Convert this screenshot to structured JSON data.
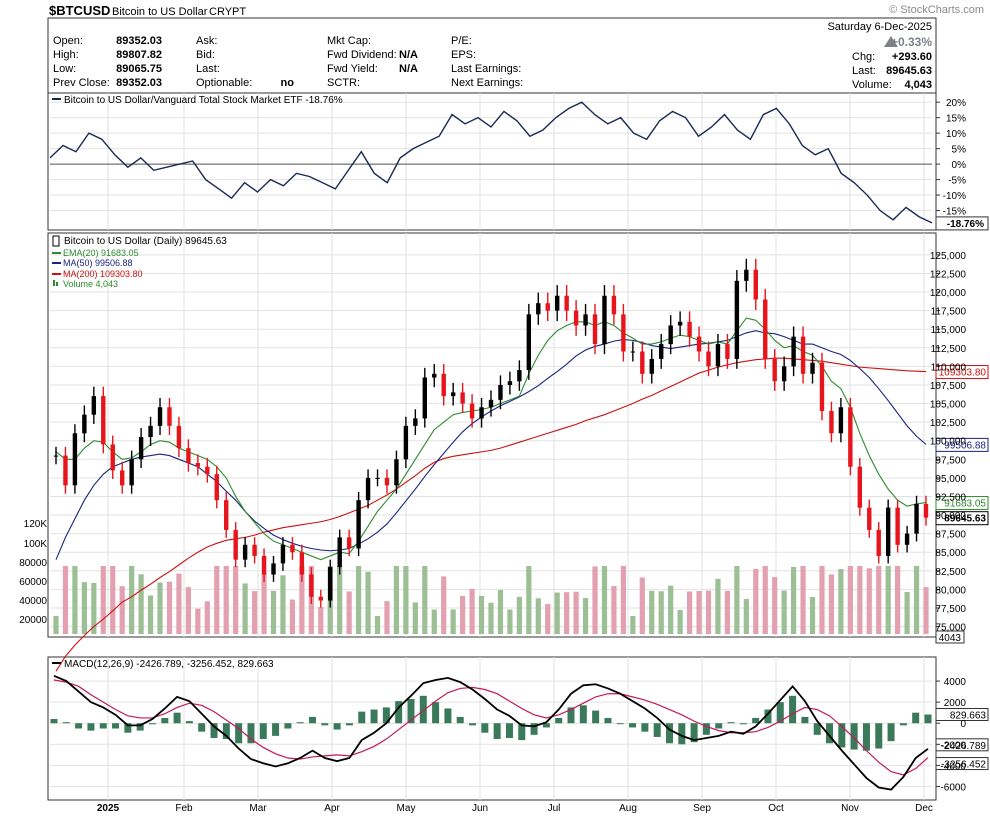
{
  "header": {
    "symbol": "$BTCUSD",
    "name": "Bitcoin to US Dollar",
    "exchange": "CRYPT",
    "watermark": "© StockCharts.com",
    "date": "Saturday  6-Dec-2025",
    "pct_change": "+0.33%",
    "chg_label": "Chg:",
    "chg_value": "+293.60",
    "last_label": "Last:",
    "last_value": "89645.63",
    "volume_label": "Volume:",
    "volume_value": "4,043",
    "quote_rows": [
      {
        "label": "Open:",
        "value": "89352.03"
      },
      {
        "label": "High:",
        "value": "89807.82"
      },
      {
        "label": "Low:",
        "value": "89065.75"
      },
      {
        "label": "Prev Close:",
        "value": "89352.03"
      }
    ],
    "bid_rows": [
      {
        "label": "Ask:",
        "value": ""
      },
      {
        "label": "Bid:",
        "value": ""
      },
      {
        "label": "Last:",
        "value": ""
      },
      {
        "label": "Optionable:",
        "value": "no"
      }
    ],
    "fund_rows": [
      {
        "label": "Mkt Cap:",
        "value": ""
      },
      {
        "label": "Fwd Dividend:",
        "value": "N/A"
      },
      {
        "label": "Fwd Yield:",
        "value": "N/A"
      },
      {
        "label": "SCTR:",
        "value": ""
      }
    ],
    "earn_rows": [
      {
        "label": "P/E:",
        "value": ""
      },
      {
        "label": "EPS:",
        "value": ""
      },
      {
        "label": "Last Earnings:",
        "value": ""
      },
      {
        "label": "Next Earnings:",
        "value": ""
      }
    ]
  },
  "colors": {
    "up": "#000000",
    "down": "#e8141c",
    "ema20": "#2e8b2e",
    "ma50": "#1a237e",
    "ma200": "#cc1111",
    "rel": "#1a2a55",
    "macd": "#000000",
    "signal": "#c2185b",
    "hist": "#3a7a5a",
    "vol_up": "#9cbf96",
    "vol_down": "#e2a0b0",
    "grid": "#e2e2e2",
    "border": "#333333"
  },
  "chart_data": [
    {
      "panel": "relative_strength",
      "type": "line",
      "legend": "Bitcoin to US Dollar/Vanguard Total Stock Market ETF -18.76%",
      "last_label": "-18.76%",
      "ylim": [
        -20,
        22
      ],
      "ticks": [
        "20%",
        "15%",
        "10%",
        "5%",
        "0%",
        "-5%",
        "-10%",
        "-15%"
      ],
      "tick_values": [
        20,
        15,
        10,
        5,
        0,
        -5,
        -10,
        -15
      ],
      "values": [
        2,
        6,
        4,
        10,
        8,
        3,
        -1,
        2,
        -2,
        -1,
        0,
        1,
        -5,
        -8,
        -11,
        -6,
        -9,
        -5,
        -7,
        -3,
        -4,
        -6,
        -8,
        -2,
        4,
        -3,
        -6,
        2,
        5,
        7,
        9,
        16,
        13,
        15,
        12,
        17,
        14,
        9,
        11,
        15,
        18,
        20,
        16,
        13,
        15,
        10,
        8,
        14,
        17,
        15,
        9,
        12,
        16,
        11,
        8,
        16,
        18,
        13,
        6,
        3,
        5,
        -3,
        -6,
        -10,
        -15,
        -18,
        -14,
        -17,
        -19
      ]
    },
    {
      "panel": "price",
      "type": "candlestick",
      "legend": "Bitcoin to US Dollar (Daily) 89645.63",
      "series": [
        {
          "name": "EMA(20) 91683.05",
          "label": "91683.05"
        },
        {
          "name": "MA(50) 99506.88",
          "label": "99506.88"
        },
        {
          "name": "MA(200) 109303.80",
          "label": "109303.80"
        },
        {
          "name": "Volume 4,043",
          "label": "4043"
        }
      ],
      "last_label": "89645.63",
      "ylim": [
        74000,
        127000
      ],
      "ticks": [
        "125,000",
        "122,500",
        "120,000",
        "117,500",
        "115,000",
        "112,500",
        "110,000",
        "107,500",
        "105,000",
        "102,500",
        "100,000",
        "97,500",
        "95,000",
        "92,500",
        "90,000",
        "87,500",
        "85,000",
        "82,500",
        "80,000",
        "77,500",
        "75,000"
      ],
      "tick_values": [
        125000,
        122500,
        120000,
        117500,
        115000,
        112500,
        110000,
        107500,
        105000,
        102500,
        100000,
        97500,
        95000,
        92500,
        90000,
        87500,
        85000,
        82500,
        80000,
        77500,
        75000
      ],
      "close": [
        98000,
        94000,
        101000,
        103500,
        106000,
        99500,
        96000,
        94000,
        97500,
        100500,
        102000,
        104500,
        102000,
        99000,
        97000,
        96500,
        95500,
        92000,
        88000,
        84000,
        86000,
        84500,
        82000,
        83500,
        86000,
        85000,
        82000,
        79000,
        78500,
        83000,
        87000,
        85500,
        92000,
        95000,
        95000,
        94000,
        97500,
        102000,
        103000,
        108500,
        109000,
        106000,
        106500,
        105000,
        103000,
        104500,
        105500,
        107500,
        108000,
        109500,
        117000,
        118500,
        117500,
        119500,
        117500,
        115500,
        117000,
        113000,
        119500,
        117000,
        112000,
        112000,
        109000,
        111000,
        113000,
        115500,
        116000,
        114000,
        112000,
        110000,
        113000,
        111000,
        121500,
        123000,
        119000,
        111000,
        108000,
        110000,
        114000,
        109000,
        110500,
        104000,
        101000,
        104500,
        96500,
        91000,
        88000,
        84500,
        91000,
        86000,
        87500,
        91500,
        89646
      ],
      "ema20": [
        98500,
        97500,
        97500,
        99000,
        100000,
        99800,
        98500,
        97500,
        97700,
        98500,
        99500,
        100000,
        99800,
        99000,
        98500,
        98000,
        97500,
        96500,
        95000,
        92500,
        90500,
        89000,
        87500,
        86500,
        86000,
        85500,
        85000,
        84500,
        84000,
        84500,
        85000,
        84800,
        86500,
        88500,
        90500,
        92000,
        93500,
        95500,
        97500,
        99500,
        101500,
        102500,
        103500,
        103800,
        104000,
        104200,
        104500,
        105000,
        105500,
        106000,
        109000,
        111500,
        113500,
        114800,
        115500,
        116000,
        116000,
        115500,
        116000,
        115500,
        114500,
        113800,
        113000,
        113000,
        113300,
        113800,
        114200,
        114000,
        113500,
        113000,
        113300,
        113000,
        114800,
        116500,
        116200,
        115000,
        113500,
        112500,
        112800,
        112000,
        111500,
        110000,
        108000,
        107000,
        104500,
        101000,
        98000,
        95500,
        93500,
        92000,
        91200,
        91500,
        91683
      ],
      "ma50": [
        84000,
        87000,
        89500,
        92000,
        94000,
        95500,
        96500,
        97000,
        97500,
        97800,
        98000,
        98200,
        98000,
        97500,
        97000,
        96500,
        95500,
        94500,
        93200,
        92000,
        90500,
        89200,
        88200,
        87300,
        86700,
        86200,
        85800,
        85500,
        85300,
        85200,
        85300,
        85500,
        86100,
        86800,
        87700,
        88800,
        90300,
        91900,
        93500,
        95200,
        96800,
        98300,
        99800,
        101200,
        102300,
        103200,
        104000,
        104700,
        105300,
        105900,
        106600,
        107400,
        108400,
        109300,
        110300,
        111400,
        112200,
        112700,
        113000,
        113400,
        113600,
        113500,
        113200,
        112800,
        112600,
        112400,
        112600,
        112800,
        113000,
        113100,
        113300,
        113500,
        114000,
        114500,
        114800,
        114500,
        114400,
        114000,
        113500,
        113000,
        113000,
        112500,
        112000,
        111600,
        110800,
        109700,
        108500,
        107000,
        105400,
        103700,
        102000,
        100600,
        99507
      ],
      "ma200": [
        69000,
        71000,
        72500,
        73800,
        75000,
        76000,
        77100,
        78300,
        79000,
        79900,
        80700,
        81600,
        82400,
        83300,
        84200,
        85000,
        85700,
        86200,
        86600,
        86800,
        87000,
        87300,
        87700,
        88000,
        88300,
        88500,
        88700,
        88900,
        89100,
        89400,
        89800,
        90300,
        90800,
        91300,
        92000,
        92700,
        93500,
        94400,
        95300,
        96300,
        97100,
        97600,
        97900,
        98100,
        98300,
        98500,
        98700,
        99000,
        99400,
        99800,
        100200,
        100600,
        101000,
        101400,
        101800,
        102200,
        102700,
        103100,
        103500,
        104000,
        104500,
        105000,
        105600,
        106100,
        106700,
        107300,
        107900,
        108500,
        109100,
        109500,
        109900,
        110200,
        110500,
        110700,
        110900,
        111000,
        111100,
        111100,
        111000,
        110900,
        110800,
        110700,
        110500,
        110300,
        110100,
        109900,
        109800,
        109700,
        109600,
        109500,
        109400,
        109350,
        109304
      ],
      "volume_note": "Volume 4,043"
    },
    {
      "panel": "macd",
      "type": "line",
      "legend": "MACD(12,26,9) -2426.789, -3256.452, 829.663",
      "ylim": [
        -7000,
        6000
      ],
      "ticks": [
        "4000",
        "2000",
        "0",
        "-2000",
        "-4000",
        "-6000"
      ],
      "tick_values": [
        4000,
        2000,
        0,
        -2000,
        -4000,
        -6000
      ],
      "labels": [
        "829.663",
        "-2426.789",
        "-3256.452"
      ],
      "macd": [
        4500,
        4000,
        3000,
        2000,
        1500,
        800,
        -200,
        -200,
        400,
        1400,
        2500,
        2100,
        900,
        -300,
        -1200,
        -2400,
        -3400,
        -3800,
        -4100,
        -3800,
        -3300,
        -2600,
        -3300,
        -3600,
        -3300,
        -1600,
        -900,
        0,
        1500,
        2600,
        3800,
        4100,
        4300,
        3900,
        3200,
        2300,
        1300,
        700,
        -200,
        -300,
        100,
        1300,
        2800,
        3600,
        3700,
        3300,
        2800,
        2100,
        1400,
        500,
        -600,
        -1200,
        -1600,
        -1400,
        -1200,
        -800,
        -1000,
        -300,
        900,
        2200,
        3500,
        2100,
        200,
        -1200,
        -2600,
        -3900,
        -5200,
        -6100,
        -6300,
        -5100,
        -3300,
        -2427
      ],
      "signal": [
        4100,
        3900,
        3500,
        2700,
        2000,
        1300,
        700,
        500,
        500,
        900,
        1500,
        1900,
        1700,
        1100,
        300,
        -500,
        -1500,
        -2300,
        -2900,
        -3300,
        -3400,
        -3200,
        -3100,
        -3000,
        -3100,
        -2700,
        -2200,
        -1500,
        -600,
        300,
        1200,
        2100,
        2900,
        3300,
        3400,
        3200,
        2800,
        2100,
        1400,
        800,
        500,
        800,
        1300,
        1900,
        2500,
        2800,
        2800,
        2500,
        2200,
        1800,
        1300,
        800,
        200,
        -300,
        -700,
        -900,
        -900,
        -800,
        -400,
        200,
        900,
        1500,
        1300,
        700,
        -300,
        -1400,
        -2600,
        -3700,
        -4600,
        -4900,
        -4300,
        -3256
      ],
      "hist": [
        400,
        100,
        -500,
        -700,
        -500,
        -500,
        -900,
        -700,
        -100,
        500,
        1000,
        200,
        -800,
        -1400,
        -1500,
        -1900,
        -1900,
        -1500,
        -1200,
        -500,
        100,
        600,
        -200,
        -600,
        -200,
        1100,
        1300,
        1500,
        2100,
        2300,
        2600,
        2000,
        1400,
        600,
        -200,
        -900,
        -1500,
        -1400,
        -1600,
        -1100,
        -400,
        500,
        1500,
        1700,
        1200,
        500,
        0,
        -400,
        -800,
        -1300,
        -1900,
        -2000,
        -1800,
        -1100,
        -500,
        100,
        -100,
        500,
        1300,
        2000,
        2600,
        600,
        -1100,
        -1900,
        -2300,
        -2500,
        -2600,
        -2400,
        -1700,
        -200,
        1000,
        829
      ]
    }
  ],
  "x_axis": {
    "year_label": "2025",
    "months": [
      "Feb",
      "Mar",
      "Apr",
      "May",
      "Jun",
      "Jul",
      "Aug",
      "Sep",
      "Oct",
      "Nov",
      "Dec"
    ]
  }
}
